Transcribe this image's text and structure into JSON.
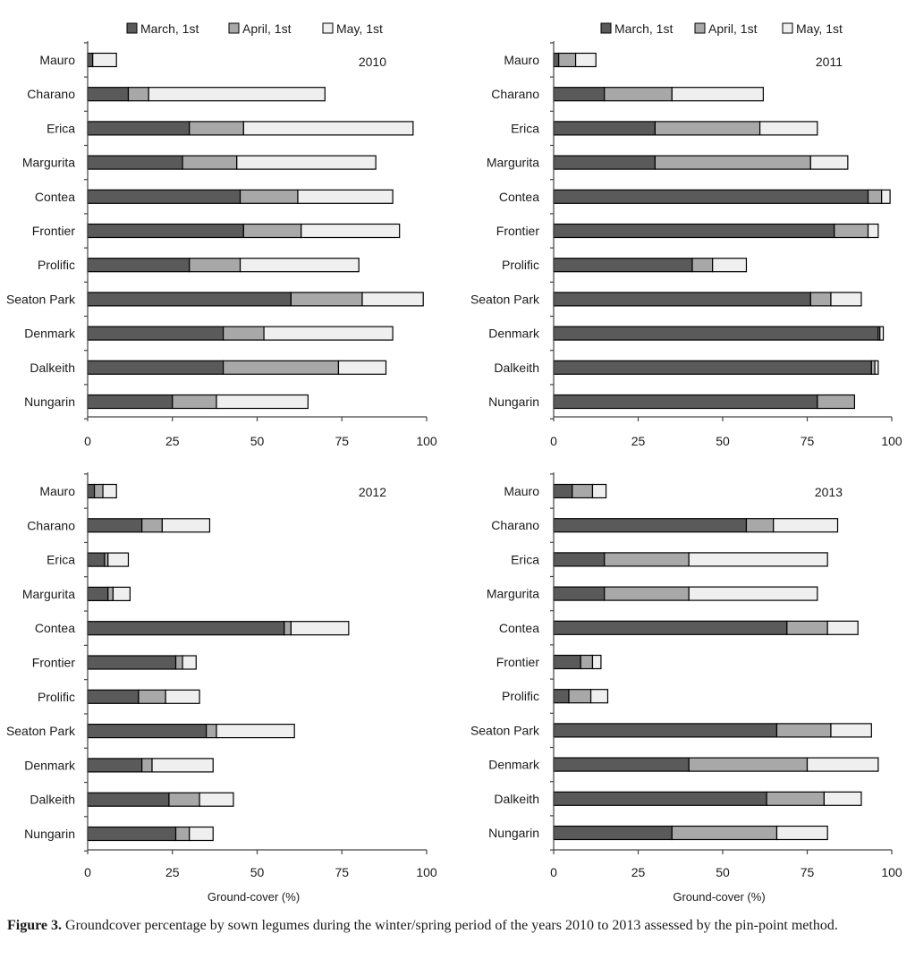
{
  "legend": [
    {
      "label": "March, 1st",
      "color": "#5a5a5a"
    },
    {
      "label": "April, 1st",
      "color": "#a8a8a8"
    },
    {
      "label": "May, 1st",
      "color": "#efefef"
    }
  ],
  "caption": {
    "label": "Figure 3.",
    "text": " Groundcover percentage by sown legumes during the winter/spring period of the years 2010 to 2013 assessed by the pin-point method."
  },
  "chart_data": [
    {
      "type": "bar",
      "stacked": true,
      "orientation": "horizontal",
      "title": "2010",
      "xlabel": "",
      "xlim": [
        0,
        100
      ],
      "xticks": [
        0,
        25,
        50,
        75,
        100
      ],
      "categories": [
        "Mauro",
        "Charano",
        "Erica",
        "Margurita",
        "Contea",
        "Frontier",
        "Prolific",
        "Seaton Park",
        "Denmark",
        "Dalkeith",
        "Nungarin"
      ],
      "series": [
        {
          "name": "March, 1st",
          "values": [
            1.5,
            12,
            30,
            28,
            45,
            46,
            30,
            60,
            40,
            40,
            25
          ]
        },
        {
          "name": "April, 1st",
          "values": [
            0,
            6,
            16,
            16,
            17,
            17,
            15,
            21,
            12,
            34,
            13
          ]
        },
        {
          "name": "May, 1st",
          "values": [
            7,
            52,
            50,
            41,
            28,
            29,
            35,
            18,
            38,
            14,
            27
          ]
        }
      ]
    },
    {
      "type": "bar",
      "stacked": true,
      "orientation": "horizontal",
      "title": "2011",
      "xlabel": "",
      "xlim": [
        0,
        100
      ],
      "xticks": [
        0,
        25,
        50,
        75,
        100
      ],
      "categories": [
        "Mauro",
        "Charano",
        "Erica",
        "Margurita",
        "Contea",
        "Frontier",
        "Prolific",
        "Seaton Park",
        "Denmark",
        "Dalkeith",
        "Nungarin"
      ],
      "series": [
        {
          "name": "March, 1st",
          "values": [
            1.5,
            15,
            30,
            30,
            93,
            83,
            41,
            76,
            96,
            94,
            78
          ]
        },
        {
          "name": "April, 1st",
          "values": [
            5,
            20,
            31,
            46,
            4,
            10,
            6,
            6,
            0.5,
            1,
            11
          ]
        },
        {
          "name": "May, 1st",
          "values": [
            6,
            27,
            17,
            11,
            2.5,
            3,
            10,
            9,
            1,
            1,
            0
          ]
        }
      ]
    },
    {
      "type": "bar",
      "stacked": true,
      "orientation": "horizontal",
      "title": "2012",
      "xlabel": "Ground-cover (%)",
      "xlim": [
        0,
        100
      ],
      "xticks": [
        0,
        25,
        50,
        75,
        100
      ],
      "categories": [
        "Mauro",
        "Charano",
        "Erica",
        "Margurita",
        "Contea",
        "Frontier",
        "Prolific",
        "Seaton Park",
        "Denmark",
        "Dalkeith",
        "Nungarin"
      ],
      "series": [
        {
          "name": "March, 1st",
          "values": [
            2,
            16,
            5,
            6,
            58,
            26,
            15,
            35,
            16,
            24,
            26
          ]
        },
        {
          "name": "April, 1st",
          "values": [
            2.5,
            6,
            1,
            1.5,
            2,
            2,
            8,
            3,
            3,
            9,
            4
          ]
        },
        {
          "name": "May, 1st",
          "values": [
            4,
            14,
            6,
            5,
            17,
            4,
            10,
            23,
            18,
            10,
            7
          ]
        }
      ]
    },
    {
      "type": "bar",
      "stacked": true,
      "orientation": "horizontal",
      "title": "2013",
      "xlabel": "Ground-cover (%)",
      "xlim": [
        0,
        100
      ],
      "xticks": [
        0,
        25,
        50,
        75,
        100
      ],
      "categories": [
        "Mauro",
        "Charano",
        "Erica",
        "Margurita",
        "Contea",
        "Frontier",
        "Prolific",
        "Seaton Park",
        "Denmark",
        "Dalkeith",
        "Nungarin"
      ],
      "series": [
        {
          "name": "March, 1st",
          "values": [
            5.5,
            57,
            15,
            15,
            69,
            8,
            4.5,
            66,
            40,
            63,
            35
          ]
        },
        {
          "name": "April, 1st",
          "values": [
            6,
            8,
            25,
            25,
            12,
            3.5,
            6.5,
            16,
            35,
            17,
            31
          ]
        },
        {
          "name": "May, 1st",
          "values": [
            4,
            19,
            41,
            38,
            9,
            2.5,
            5,
            12,
            21,
            11,
            15
          ]
        }
      ]
    }
  ]
}
